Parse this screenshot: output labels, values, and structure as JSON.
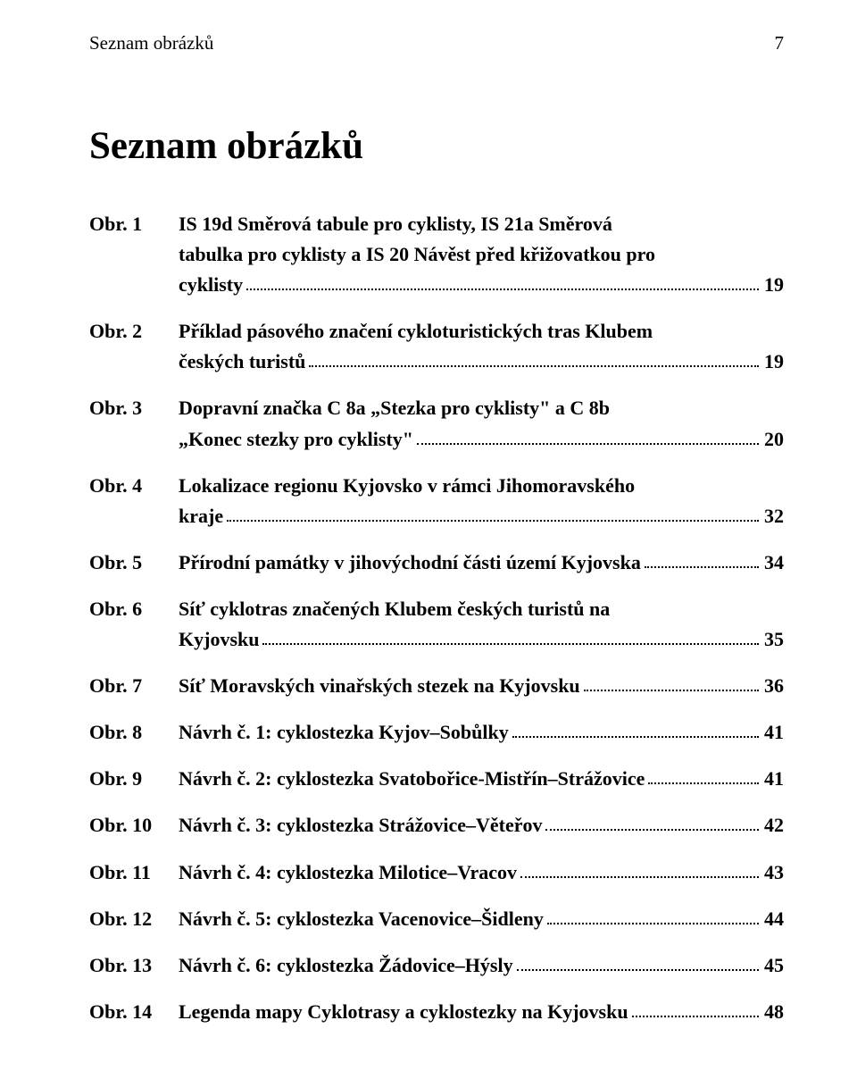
{
  "running_header": {
    "left": "Seznam obrázků",
    "page": "7"
  },
  "title": "Seznam obrázků",
  "entries": [
    {
      "label": "Obr. 1",
      "lines": [
        "IS 19d Směrová tabule pro cyklisty, IS 21a Směrová",
        "tabulka pro cyklisty a IS 20 Návěst před křižovatkou pro",
        "cyklisty"
      ],
      "page": "19"
    },
    {
      "label": "Obr. 2",
      "lines": [
        "Příklad pásového značení cykloturistických tras Klubem",
        "českých turistů"
      ],
      "page": "19"
    },
    {
      "label": "Obr. 3",
      "lines": [
        "Dopravní značka C 8a „Stezka pro cyklisty\" a C 8b",
        "„Konec stezky pro cyklisty\""
      ],
      "page": "20"
    },
    {
      "label": "Obr. 4",
      "lines": [
        "Lokalizace regionu Kyjovsko v rámci Jihomoravského",
        "kraje"
      ],
      "page": "32"
    },
    {
      "label": "Obr. 5",
      "lines": [
        "Přírodní památky v jihovýchodní části území Kyjovska"
      ],
      "page": "34"
    },
    {
      "label": "Obr. 6",
      "lines": [
        "Síť cyklotras značených Klubem českých turistů na",
        "Kyjovsku"
      ],
      "page": "35"
    },
    {
      "label": "Obr. 7",
      "lines": [
        "Síť Moravských vinařských stezek na Kyjovsku"
      ],
      "page": "36"
    },
    {
      "label": "Obr. 8",
      "lines": [
        "Návrh č. 1: cyklostezka Kyjov–Sobůlky"
      ],
      "page": "41"
    },
    {
      "label": "Obr. 9",
      "lines": [
        "Návrh č. 2: cyklostezka Svatobořice-Mistřín–Strážovice"
      ],
      "page": "41"
    },
    {
      "label": "Obr. 10",
      "lines": [
        "Návrh č. 3: cyklostezka Strážovice–Věteřov"
      ],
      "page": "42"
    },
    {
      "label": "Obr. 11",
      "lines": [
        "Návrh č. 4: cyklostezka Milotice–Vracov"
      ],
      "page": "43"
    },
    {
      "label": "Obr. 12",
      "lines": [
        "Návrh č. 5: cyklostezka Vacenovice–Šidleny"
      ],
      "page": "44"
    },
    {
      "label": "Obr. 13",
      "lines": [
        "Návrh č. 6: cyklostezka Žádovice–Hýsly"
      ],
      "page": "45"
    },
    {
      "label": "Obr. 14",
      "lines": [
        "Legenda mapy Cyklotrasy a cyklostezky na Kyjovsku"
      ],
      "page": "48"
    }
  ]
}
